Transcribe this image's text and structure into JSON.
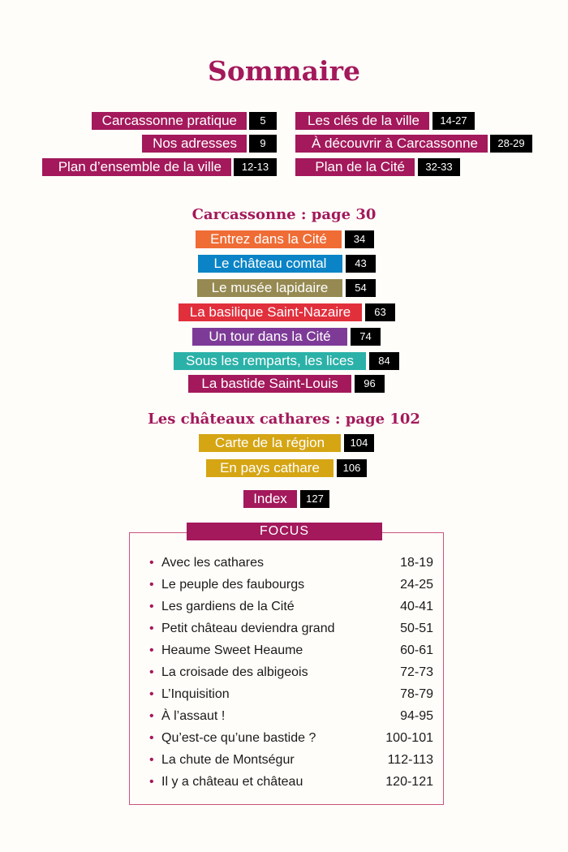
{
  "title": "Sommaire",
  "colors": {
    "magenta": "#a3195b",
    "orange": "#ef6c35",
    "blue": "#0a84c6",
    "olive": "#968a52",
    "red": "#e12f3c",
    "purple": "#7d3b97",
    "teal": "#2bb1a8",
    "yellow": "#d5a514"
  },
  "top_entries": [
    {
      "label": "Carcassonne pratique",
      "page": "5"
    },
    {
      "label": "Nos adresses",
      "page": "9"
    },
    {
      "label": "Plan d’ensemble de la ville",
      "page": "12-13"
    },
    {
      "label": "Les clés de la ville",
      "page": "14-27"
    },
    {
      "label": "À découvrir à Carcassonne",
      "page": "28-29"
    },
    {
      "label": "Plan de la Cité",
      "page": "32-33"
    }
  ],
  "section1": {
    "heading": "Carcassonne : page 30",
    "entries": [
      {
        "label": "Entrez dans la Cité",
        "page": "34"
      },
      {
        "label": "Le château comtal",
        "page": "43"
      },
      {
        "label": "Le musée lapidaire",
        "page": "54"
      },
      {
        "label": "La basilique Saint-Nazaire",
        "page": "63"
      },
      {
        "label": "Un tour dans la Cité",
        "page": "74"
      },
      {
        "label": "Sous les remparts, les lices",
        "page": "84"
      },
      {
        "label": "La bastide Saint-Louis",
        "page": "96"
      }
    ]
  },
  "section2": {
    "heading": "Les châteaux cathares : page 102",
    "entries": [
      {
        "label": "Carte de la région",
        "page": "104"
      },
      {
        "label": "En pays cathare",
        "page": "106"
      },
      {
        "label": "Index",
        "page": "127"
      }
    ]
  },
  "focus": {
    "title": "FOCUS",
    "bullet": "•",
    "items": [
      {
        "label": "Avec les cathares",
        "page": "18-19"
      },
      {
        "label": "Le peuple des faubourgs",
        "page": "24-25"
      },
      {
        "label": "Les gardiens de la Cité",
        "page": "40-41"
      },
      {
        "label": "Petit château deviendra grand",
        "page": "50-51"
      },
      {
        "label": "Heaume Sweet Heaume",
        "page": "60-61"
      },
      {
        "label": "La croisade des albigeois",
        "page": "72-73"
      },
      {
        "label": "L’Inquisition",
        "page": "78-79"
      },
      {
        "label": "À l’assaut !",
        "page": "94-95"
      },
      {
        "label": "Qu’est-ce qu’une bastide ?",
        "page": "100-101"
      },
      {
        "label": "La chute de Montségur",
        "page": "112-113"
      },
      {
        "label": "Il y a château et château",
        "page": "120-121"
      }
    ]
  }
}
